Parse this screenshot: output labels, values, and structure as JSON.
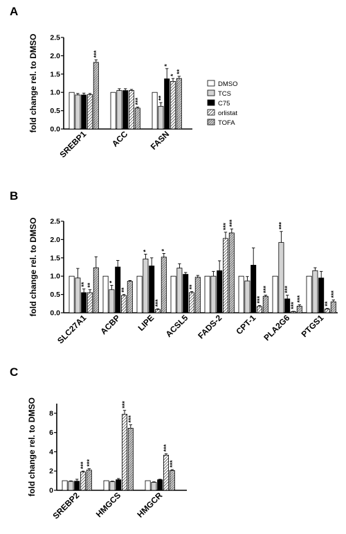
{
  "series_styles": [
    {
      "name": "DMSO",
      "fill": "#ffffff"
    },
    {
      "name": "TCS",
      "fill": "#d4d4d4"
    },
    {
      "name": "C75",
      "fill": "#000000"
    },
    {
      "name": "orlistat",
      "fill": "hatch-fine"
    },
    {
      "name": "TOFA",
      "fill": "hatch-dense"
    }
  ],
  "chart_data": [
    {
      "panel": "A",
      "type": "bar",
      "ylabel": "fold change rel. to DMSO",
      "ylim": [
        0,
        2.5
      ],
      "yticks": [
        "0.0",
        "0.5",
        "1.0",
        "1.5",
        "2.0",
        "2.5"
      ],
      "categories": [
        "SREBP1",
        "ACC",
        "FASN"
      ],
      "series": [
        {
          "name": "DMSO",
          "values": [
            1.0,
            1.0,
            1.0
          ],
          "errors": [
            0,
            0,
            0
          ],
          "sig": [
            "",
            "",
            ""
          ]
        },
        {
          "name": "TCS",
          "values": [
            0.93,
            1.05,
            0.62
          ],
          "errors": [
            0.04,
            0.05,
            0.1
          ],
          "sig": [
            "",
            "",
            "**"
          ]
        },
        {
          "name": "C75",
          "values": [
            0.93,
            1.05,
            1.37
          ],
          "errors": [
            0.05,
            0.05,
            0.28
          ],
          "sig": [
            "",
            "",
            "*"
          ]
        },
        {
          "name": "orlistat",
          "values": [
            0.94,
            1.05,
            1.3
          ],
          "errors": [
            0.03,
            0.03,
            0.08
          ],
          "sig": [
            "",
            "",
            "*"
          ]
        },
        {
          "name": "TOFA",
          "values": [
            1.82,
            0.57,
            1.38
          ],
          "errors": [
            0.07,
            0.03,
            0.06
          ],
          "sig": [
            "***",
            "***",
            "**"
          ]
        }
      ],
      "legend": [
        "DMSO",
        "TCS",
        "C75",
        "orlistat",
        "TOFA"
      ]
    },
    {
      "panel": "B",
      "type": "bar",
      "ylabel": "fold change rel. to DMSO",
      "ylim": [
        0,
        2.5
      ],
      "yticks": [
        "0.0",
        "0.5",
        "1.0",
        "1.5",
        "2.0",
        "2.5"
      ],
      "categories": [
        "SLC27A1",
        "ACBP",
        "LIPE",
        "ACSL5",
        "FADS-2",
        "CPT-1",
        "PLA2G6",
        "PTGS1"
      ],
      "series": [
        {
          "name": "DMSO",
          "values": [
            1.0,
            1.0,
            1.0,
            1.0,
            1.0,
            1.0,
            1.0,
            1.0
          ],
          "errors": [
            0,
            0,
            0,
            0,
            0,
            0,
            0,
            0
          ],
          "sig": [
            "",
            "",
            "",
            "",
            "",
            "",
            "",
            ""
          ]
        },
        {
          "name": "TCS",
          "values": [
            0.95,
            0.63,
            1.47,
            1.22,
            1.0,
            0.87,
            1.92,
            1.15
          ],
          "errors": [
            0.26,
            0.12,
            0.13,
            0.12,
            0.13,
            0.12,
            0.3,
            0.08
          ],
          "sig": [
            "",
            "*",
            "*",
            "",
            "",
            "",
            "***",
            ""
          ]
        },
        {
          "name": "C75",
          "values": [
            0.55,
            1.25,
            1.28,
            1.05,
            1.15,
            1.3,
            0.38,
            0.95
          ],
          "errors": [
            0.1,
            0.18,
            0.22,
            0.05,
            0.27,
            0.47,
            0.1,
            0.18
          ],
          "sig": [
            "**",
            "",
            "",
            "",
            "",
            "",
            "***",
            ""
          ]
        },
        {
          "name": "orlistat",
          "values": [
            0.55,
            0.47,
            0.09,
            0.55,
            2.03,
            0.17,
            0.03,
            0.1
          ],
          "errors": [
            0.08,
            0.03,
            0.02,
            0.03,
            0.17,
            0.03,
            0.01,
            0.02
          ],
          "sig": [
            "**",
            "**",
            "***",
            "**",
            "***",
            "***",
            "***",
            "**"
          ]
        },
        {
          "name": "TOFA",
          "values": [
            1.23,
            0.86,
            1.52,
            0.97,
            2.18,
            0.45,
            0.18,
            0.3
          ],
          "errors": [
            0.3,
            0.02,
            0.1,
            0.05,
            0.11,
            0.03,
            0.04,
            0.05
          ],
          "sig": [
            "",
            "",
            "*",
            "",
            "***",
            "***",
            "***",
            "***"
          ]
        }
      ]
    },
    {
      "panel": "C",
      "type": "bar",
      "ylabel": "fold change rel. to DMSO",
      "ylim": [
        0,
        9
      ],
      "yticks": [
        "0",
        "2",
        "4",
        "6",
        "8"
      ],
      "categories": [
        "SREBP2",
        "HMGCS",
        "HMGCR"
      ],
      "series": [
        {
          "name": "DMSO",
          "values": [
            1.0,
            1.0,
            1.0
          ],
          "errors": [
            0,
            0,
            0
          ],
          "sig": [
            "",
            "",
            ""
          ]
        },
        {
          "name": "TCS",
          "values": [
            0.93,
            0.9,
            0.83
          ],
          "errors": [
            0.05,
            0.05,
            0.05
          ],
          "sig": [
            "",
            "",
            ""
          ]
        },
        {
          "name": "C75",
          "values": [
            0.95,
            1.1,
            1.1
          ],
          "errors": [
            0.2,
            0.12,
            0.05
          ],
          "sig": [
            "",
            "",
            ""
          ]
        },
        {
          "name": "orlistat",
          "values": [
            1.9,
            7.9,
            3.65
          ],
          "errors": [
            0.1,
            0.4,
            0.15
          ],
          "sig": [
            "***",
            "***",
            "***"
          ]
        },
        {
          "name": "TOFA",
          "values": [
            2.1,
            6.45,
            2.05
          ],
          "errors": [
            0.15,
            0.35,
            0.1
          ],
          "sig": [
            "***",
            "***",
            "***"
          ]
        }
      ]
    }
  ]
}
